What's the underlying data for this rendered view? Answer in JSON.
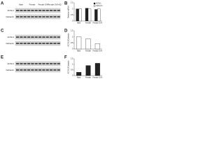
{
  "panels": [
    "A",
    "B",
    "C",
    "D",
    "E",
    "F"
  ],
  "blots": [
    {
      "lanes": [
        "Male",
        "Female",
        "Female OVX",
        "Female OVX+E2"
      ],
      "rows": [
        "ACSL1",
        "Calnexin"
      ]
    },
    {
      "rows": [
        "ACSL1",
        "Calnexin"
      ]
    },
    {
      "rows": [
        "ACSL1",
        "Calnexin"
      ]
    }
  ],
  "chart_data": [
    {
      "type": "bar",
      "ylabel": "Relative mRNA",
      "categories": [
        "Male",
        "Female",
        "Female OVX"
      ],
      "series": [
        {
          "name": "ACSL1",
          "color": "#222222",
          "values": [
            1,
            1.05,
            0.95
          ]
        },
        {
          "name": "Calnexin",
          "color": "#ffffff",
          "values": [
            1,
            1,
            1
          ]
        }
      ],
      "ylim": [
        0,
        1.5
      ],
      "yticks": [
        0,
        0.5,
        1,
        1.5
      ],
      "legend": "top-right"
    },
    {
      "type": "bar",
      "ylabel": "ACSL1/Calnexin",
      "categories": [
        "Male",
        "Female",
        "Female OVX"
      ],
      "values": [
        1,
        0.85,
        0.45
      ],
      "color": "#ffffff",
      "ylim": [
        0,
        1.5
      ],
      "yticks": [
        0,
        0.5,
        1,
        1.5
      ]
    },
    {
      "type": "bar",
      "ylabel": "ACSL1/Calnexin",
      "categories": [
        "Male",
        "Female",
        "Female OVX"
      ],
      "values": [
        0.3,
        0.9,
        1.1
      ],
      "color": "#222222",
      "ylim": [
        0,
        1.5
      ],
      "yticks": [
        0,
        0.5,
        1,
        1.5
      ]
    }
  ]
}
